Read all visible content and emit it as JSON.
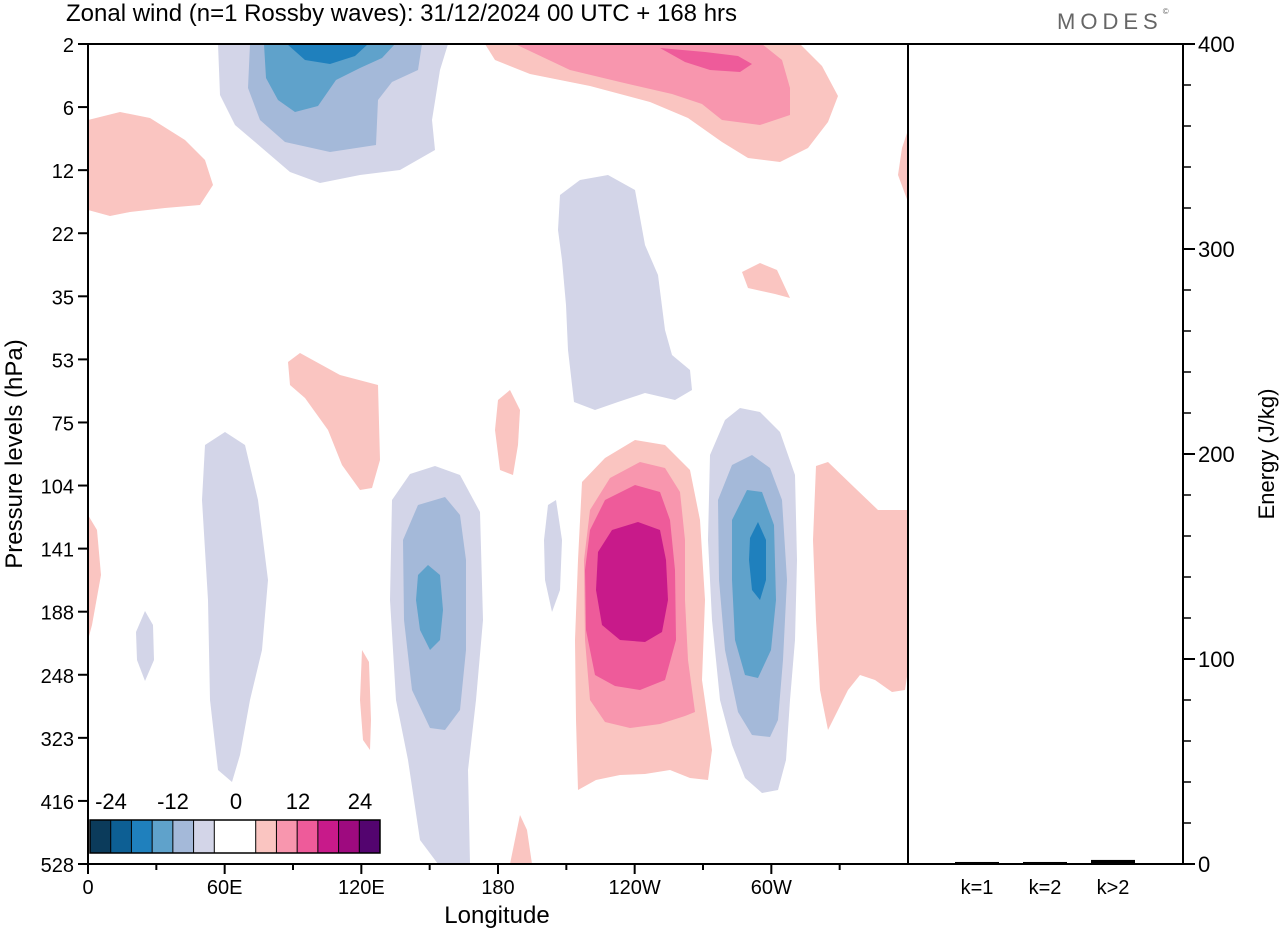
{
  "header": {
    "title": "Zonal wind (n=1 Rossby waves):  31/12/2024  00 UTC  + 168 hrs",
    "brand": "MODES",
    "brand_mark": "©"
  },
  "chart_data": [
    {
      "type": "heatmap",
      "xlabel": "Longitude",
      "ylabel": "Pressure levels (hPa)",
      "x_ticks": [
        "0",
        "60E",
        "120E",
        "180",
        "120W",
        "60W"
      ],
      "y_ticks": [
        "2",
        "6",
        "12",
        "22",
        "35",
        "53",
        "75",
        "104",
        "141",
        "188",
        "248",
        "323",
        "416",
        "528"
      ],
      "y_order": "top-to-bottom",
      "colorbar": {
        "tick_labels": [
          "-24",
          "-12",
          "0",
          "12",
          "24"
        ],
        "colors": [
          "#0b3b5b",
          "#0d5f94",
          "#1f80bd",
          "#5fa2cb",
          "#a4b9d9",
          "#d3d5e8",
          "#ffffff",
          "#ffffff",
          "#fac5c1",
          "#f896ae",
          "#ee5b9a",
          "#c81a8a",
          "#9e0a7f",
          "#53046f"
        ]
      },
      "features": [
        {
          "sign": "negative",
          "lon": 100,
          "pressure": 2,
          "peak": -15
        },
        {
          "sign": "positive",
          "lon": 205,
          "pressure": 3,
          "peak": 12
        },
        {
          "sign": "negative",
          "lon": 152,
          "pressure": 170,
          "peak": -12
        },
        {
          "sign": "positive",
          "lon": 238,
          "pressure": 170,
          "peak": 17
        },
        {
          "sign": "negative",
          "lon": 305,
          "pressure": 150,
          "peak": -15
        },
        {
          "sign": "negative",
          "lon": 252,
          "pressure": 35,
          "peak": -3
        },
        {
          "sign": "positive",
          "lon": 25,
          "pressure": 10,
          "peak": 3
        },
        {
          "sign": "positive",
          "lon": 110,
          "pressure": 75,
          "peak": 3
        },
        {
          "sign": "positive",
          "lon": 338,
          "pressure": 190,
          "peak": 3
        }
      ]
    },
    {
      "type": "bar",
      "categories": [
        "k=1",
        "k=2",
        "k>2"
      ],
      "values": [
        0.5,
        0.5,
        1.5
      ],
      "ylabel": "Energy (J/kg)",
      "ylim": [
        0,
        400
      ],
      "y_ticks": [
        "0",
        "100",
        "200",
        "300",
        "400"
      ]
    }
  ]
}
